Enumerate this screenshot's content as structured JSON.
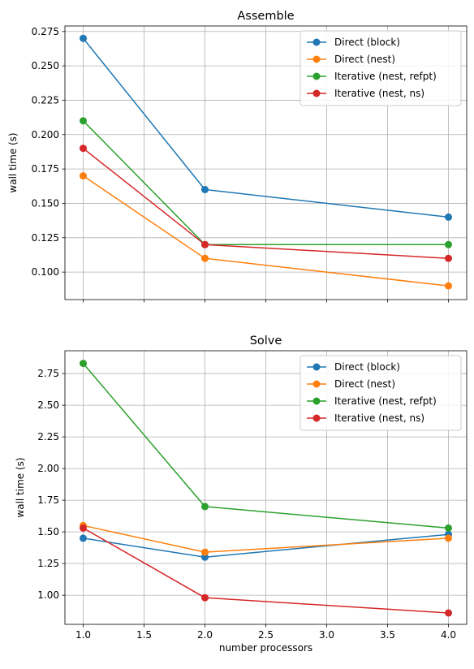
{
  "chart_data": [
    {
      "type": "line",
      "title": "Assemble",
      "xlabel": "",
      "ylabel": "wall time (s)",
      "x": [
        1.0,
        2.0,
        4.0
      ],
      "xlim": [
        0.85,
        4.15
      ],
      "ylim": [
        0.08,
        0.279
      ],
      "xticks": [
        1.0,
        1.5,
        2.0,
        2.5,
        3.0,
        3.5,
        4.0
      ],
      "xtick_labels_visible": false,
      "yticks": [
        0.1,
        0.125,
        0.15,
        0.175,
        0.2,
        0.225,
        0.25,
        0.275
      ],
      "ytick_labels": [
        "0.100",
        "0.125",
        "0.150",
        "0.175",
        "0.200",
        "0.225",
        "0.250",
        "0.275"
      ],
      "grid": true,
      "legend": "top-right",
      "series": [
        {
          "name": "Direct (block)",
          "color": "#1f77b4",
          "values": [
            0.27,
            0.16,
            0.14
          ]
        },
        {
          "name": "Direct (nest)",
          "color": "#ff7f0e",
          "values": [
            0.17,
            0.11,
            0.09
          ]
        },
        {
          "name": "Iterative (nest, refpt)",
          "color": "#2ca02c",
          "values": [
            0.21,
            0.12,
            0.12
          ]
        },
        {
          "name": "Iterative (nest, ns)",
          "color": "#d62728",
          "values": [
            0.19,
            0.12,
            0.11
          ]
        }
      ]
    },
    {
      "type": "line",
      "title": "Solve",
      "xlabel": "number processors",
      "ylabel": "wall time (s)",
      "x": [
        1.0,
        2.0,
        4.0
      ],
      "xlim": [
        0.85,
        4.15
      ],
      "ylim": [
        0.77,
        2.93
      ],
      "xticks": [
        1.0,
        1.5,
        2.0,
        2.5,
        3.0,
        3.5,
        4.0
      ],
      "xtick_labels": [
        "1.0",
        "1.5",
        "2.0",
        "2.5",
        "3.0",
        "3.5",
        "4.0"
      ],
      "xtick_labels_visible": true,
      "yticks": [
        1.0,
        1.25,
        1.5,
        1.75,
        2.0,
        2.25,
        2.5,
        2.75
      ],
      "ytick_labels": [
        "1.00",
        "1.25",
        "1.50",
        "1.75",
        "2.00",
        "2.25",
        "2.50",
        "2.75"
      ],
      "grid": true,
      "legend": "top-right",
      "series": [
        {
          "name": "Direct (block)",
          "color": "#1f77b4",
          "values": [
            1.45,
            1.3,
            1.48
          ]
        },
        {
          "name": "Direct (nest)",
          "color": "#ff7f0e",
          "values": [
            1.55,
            1.34,
            1.45
          ]
        },
        {
          "name": "Iterative (nest, refpt)",
          "color": "#2ca02c",
          "values": [
            2.83,
            1.7,
            1.53
          ]
        },
        {
          "name": "Iterative (nest, ns)",
          "color": "#d62728",
          "values": [
            1.53,
            0.98,
            0.86
          ]
        }
      ]
    }
  ]
}
